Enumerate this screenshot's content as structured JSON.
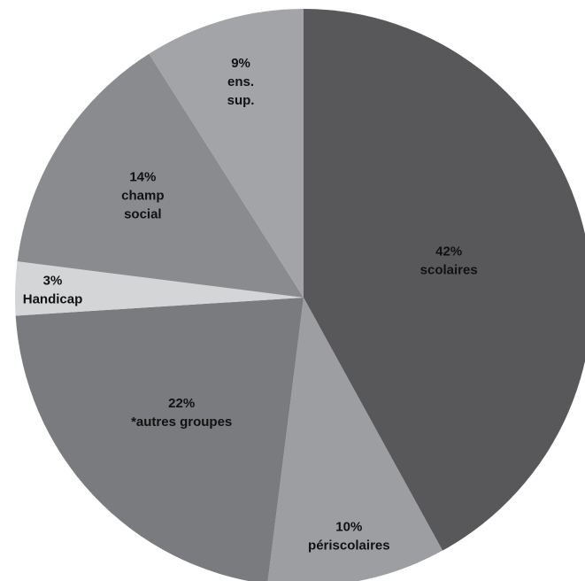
{
  "chart_data": {
    "type": "pie",
    "title": "",
    "start": "top",
    "direction": "clockwise",
    "slices": [
      {
        "label_lines": [
          "42%",
          "scolaires"
        ],
        "value": 42,
        "color": "#58585a",
        "label_color": "#ffffff"
      },
      {
        "label_lines": [
          "10%",
          "périscolaires"
        ],
        "value": 10,
        "color": "#9d9ea1",
        "label_color": "#ffffff"
      },
      {
        "label_lines": [
          "22%",
          "*autres groupes"
        ],
        "value": 22,
        "color": "#7a7b7e",
        "label_color": "#ffffff"
      },
      {
        "label_lines": [
          "3%",
          "Handicap"
        ],
        "value": 3,
        "color": "#d4d5d6",
        "label_color": "#111111"
      },
      {
        "label_lines": [
          "14%",
          "champ",
          "social"
        ],
        "value": 14,
        "color": "#8a8b8e",
        "label_color": "#111111"
      },
      {
        "label_lines": [
          "9%",
          "ens.",
          "sup."
        ],
        "value": 9,
        "color": "#a3a4a7",
        "label_color": "#111111"
      }
    ]
  }
}
